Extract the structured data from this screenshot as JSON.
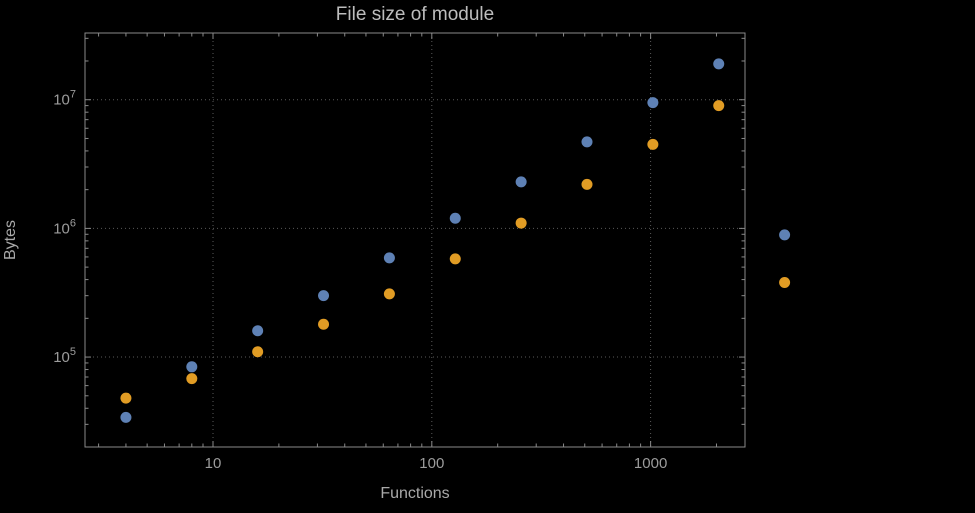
{
  "chart": {
    "title": "File size of module",
    "xlabel": "Functions",
    "ylabel": "Bytes"
  },
  "colors": {
    "background": "#000000",
    "frame": "#8a8a8a",
    "grid": "#5a5a5a",
    "tick_label": "#9c9c9c",
    "title_text": "#bdbdbd",
    "axis_label_text": "#a9a9a9",
    "series1": "#5e81b5",
    "series2": "#e19c24"
  },
  "chart_data": {
    "type": "scatter",
    "title": "File size of module",
    "xlabel": "Functions",
    "ylabel": "Bytes",
    "xscale": "log",
    "yscale": "log",
    "xlim": [
      2.6,
      2700
    ],
    "ylim": [
      20000,
      33000000
    ],
    "x_ticks": [
      10,
      100,
      1000
    ],
    "y_ticks": [
      100000,
      1000000,
      10000000
    ],
    "grid": true,
    "legend": false,
    "x": [
      4,
      8,
      16,
      32,
      64,
      128,
      256,
      512,
      1024,
      2048,
      4096
    ],
    "series": [
      {
        "name": "series-1-blue",
        "color": "#5e81b5",
        "values": [
          34000,
          84000,
          160000,
          300000,
          590000,
          1200000,
          2300000,
          4700000,
          9500000,
          19000000,
          890000
        ]
      },
      {
        "name": "series-2-orange",
        "color": "#e19c24",
        "values": [
          48000,
          68000,
          110000,
          180000,
          310000,
          580000,
          1100000,
          2200000,
          4500000,
          9000000,
          380000
        ]
      }
    ]
  }
}
